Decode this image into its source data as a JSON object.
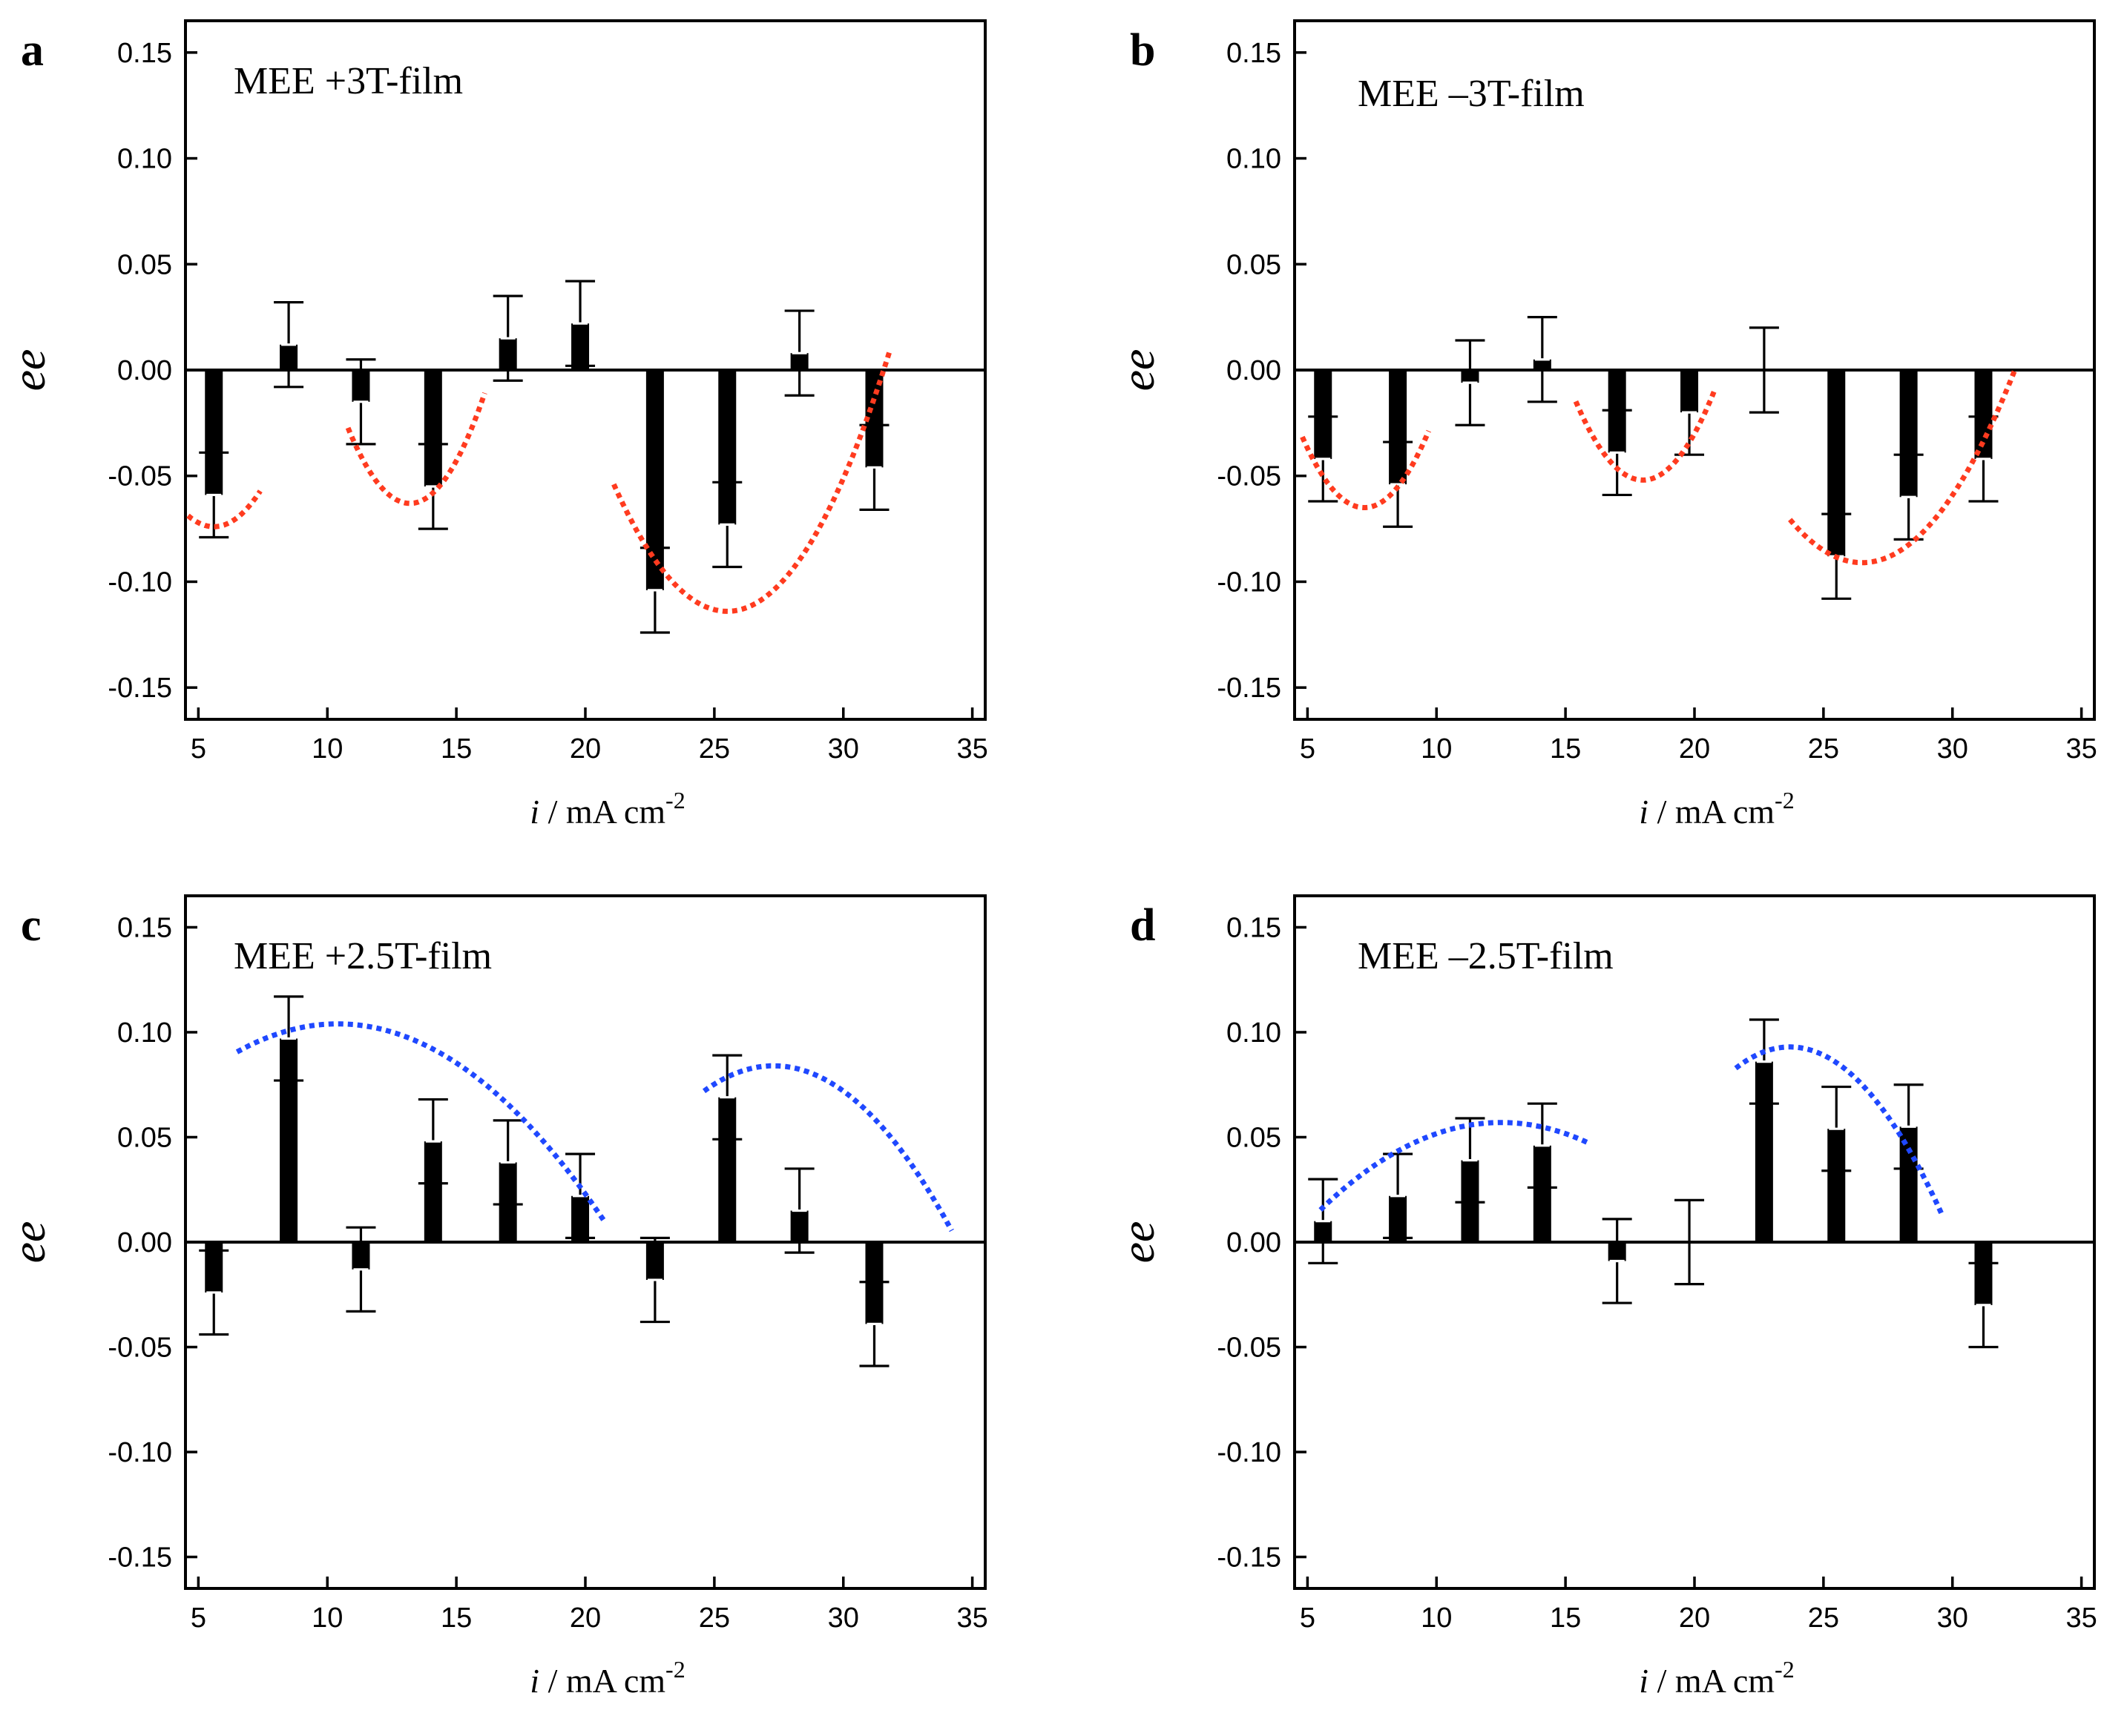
{
  "figure": {
    "ylabel": "ee",
    "xlabel_var": "i",
    "xlabel_unit": " / mA cm",
    "xlabel_exp": "-2"
  },
  "chart_data": [
    {
      "id": "a",
      "type": "bar",
      "letter": "a",
      "title": "MEE +3T-film",
      "xlim": [
        4.5,
        35.5
      ],
      "ylim": [
        -0.165,
        0.165
      ],
      "xticks": [
        5,
        10,
        15,
        20,
        25,
        30,
        35
      ],
      "xtick_labels": [
        "5",
        "10",
        "15",
        "20",
        "25",
        "30",
        "35"
      ],
      "yticks": [
        0.15,
        0.1,
        0.05,
        0.0,
        -0.05,
        -0.1,
        -0.15
      ],
      "ytick_labels": [
        "0.15",
        "0.10",
        "0.05",
        "0.00",
        "-0.05",
        "-0.10",
        "-0.15"
      ],
      "x": [
        5.6,
        8.5,
        11.3,
        14.1,
        17.0,
        19.8,
        22.7,
        25.5,
        28.3,
        31.2
      ],
      "values": [
        -0.059,
        0.012,
        -0.015,
        -0.055,
        0.015,
        0.022,
        -0.104,
        -0.073,
        0.008,
        -0.046
      ],
      "errors": [
        0.02,
        0.02,
        0.02,
        0.02,
        0.02,
        0.02,
        0.02,
        0.02,
        0.02,
        0.02
      ],
      "fit_color": "#ff3b1f",
      "fits": [
        {
          "x0": 4.6,
          "x1": 7.4,
          "vertex_x": 5.6,
          "vertex_y": -0.074,
          "a": 0.0052
        },
        {
          "x0": 10.8,
          "x1": 16.1,
          "vertex_x": 13.2,
          "vertex_y": -0.063,
          "a": 0.0062
        },
        {
          "x0": 21.1,
          "x1": 31.8,
          "vertex_x": 25.5,
          "vertex_y": -0.114,
          "a": 0.0031
        }
      ]
    },
    {
      "id": "b",
      "type": "bar",
      "letter": "b",
      "title": "MEE –3T-film",
      "xlim": [
        4.5,
        35.5
      ],
      "ylim": [
        -0.165,
        0.165
      ],
      "xticks": [
        5,
        10,
        15,
        20,
        25,
        30,
        35
      ],
      "xtick_labels": [
        "5",
        "10",
        "15",
        "20",
        "25",
        "30",
        "35"
      ],
      "yticks": [
        0.15,
        0.1,
        0.05,
        0.0,
        -0.05,
        -0.1,
        -0.15
      ],
      "ytick_labels": [
        "0.15",
        "0.10",
        "0.05",
        "0.00",
        "-0.05",
        "-0.10",
        "-0.15"
      ],
      "x": [
        5.6,
        8.5,
        11.3,
        14.1,
        17.0,
        19.8,
        22.7,
        25.5,
        28.3,
        31.2
      ],
      "values": [
        -0.042,
        -0.054,
        -0.006,
        0.005,
        -0.039,
        -0.02,
        0.0,
        -0.088,
        -0.06,
        -0.042
      ],
      "errors": [
        0.02,
        0.02,
        0.02,
        0.02,
        0.02,
        0.02,
        0.02,
        0.02,
        0.02,
        0.02
      ],
      "fit_color": "#ff3b1f",
      "fits": [
        {
          "x0": 4.8,
          "x1": 9.7,
          "vertex_x": 7.2,
          "vertex_y": -0.065,
          "a": 0.0058
        },
        {
          "x0": 15.4,
          "x1": 20.8,
          "vertex_x": 18.0,
          "vertex_y": -0.052,
          "a": 0.0055
        },
        {
          "x0": 23.7,
          "x1": 32.4,
          "vertex_x": 26.5,
          "vertex_y": -0.091,
          "a": 0.0026
        }
      ]
    },
    {
      "id": "c",
      "type": "bar",
      "letter": "c",
      "title": "MEE +2.5T-film",
      "xlim": [
        4.5,
        35.5
      ],
      "ylim": [
        -0.165,
        0.165
      ],
      "xticks": [
        5,
        10,
        15,
        20,
        25,
        30,
        35
      ],
      "xtick_labels": [
        "5",
        "10",
        "15",
        "20",
        "25",
        "30",
        "35"
      ],
      "yticks": [
        0.15,
        0.1,
        0.05,
        0.0,
        -0.05,
        -0.1,
        -0.15
      ],
      "ytick_labels": [
        "0.15",
        "0.10",
        "0.05",
        "0.00",
        "-0.05",
        "-0.10",
        "-0.15"
      ],
      "x": [
        5.6,
        8.5,
        11.3,
        14.1,
        17.0,
        19.8,
        22.7,
        25.5,
        28.3,
        31.2
      ],
      "values": [
        -0.024,
        0.097,
        -0.013,
        0.048,
        0.038,
        0.022,
        -0.018,
        0.069,
        0.015,
        -0.039
      ],
      "errors": [
        0.02,
        0.02,
        0.02,
        0.02,
        0.02,
        0.02,
        0.02,
        0.02,
        0.02,
        0.02
      ],
      "fit_color": "#1f48ff",
      "fits": [
        {
          "x0": 6.5,
          "x1": 20.7,
          "vertex_x": 10.4,
          "vertex_y": 0.104,
          "a": -0.00088
        },
        {
          "x0": 24.6,
          "x1": 34.2,
          "vertex_x": 27.3,
          "vertex_y": 0.084,
          "a": -0.00165
        }
      ]
    },
    {
      "id": "d",
      "type": "bar",
      "letter": "d",
      "title": "MEE –2.5T-film",
      "xlim": [
        4.5,
        35.5
      ],
      "ylim": [
        -0.165,
        0.165
      ],
      "xticks": [
        5,
        10,
        15,
        20,
        25,
        30,
        35
      ],
      "xtick_labels": [
        "5",
        "10",
        "15",
        "20",
        "25",
        "30",
        "35"
      ],
      "yticks": [
        0.15,
        0.1,
        0.05,
        0.0,
        -0.05,
        -0.1,
        -0.15
      ],
      "ytick_labels": [
        "0.15",
        "0.10",
        "0.05",
        "0.00",
        "-0.05",
        "-0.10",
        "-0.15"
      ],
      "x": [
        5.6,
        8.5,
        11.3,
        14.1,
        17.0,
        19.8,
        22.7,
        25.5,
        28.3,
        31.2
      ],
      "values": [
        0.01,
        0.022,
        0.039,
        0.046,
        -0.009,
        0.0,
        0.086,
        0.054,
        0.055,
        -0.03
      ],
      "errors": [
        0.02,
        0.02,
        0.02,
        0.02,
        0.02,
        0.02,
        0.02,
        0.02,
        0.02,
        0.02
      ],
      "fit_color": "#1f48ff",
      "fits": [
        {
          "x0": 5.5,
          "x1": 15.9,
          "vertex_x": 12.5,
          "vertex_y": 0.057,
          "a": -0.00085
        },
        {
          "x0": 21.6,
          "x1": 29.6,
          "vertex_x": 23.7,
          "vertex_y": 0.093,
          "a": -0.0023
        }
      ]
    }
  ]
}
